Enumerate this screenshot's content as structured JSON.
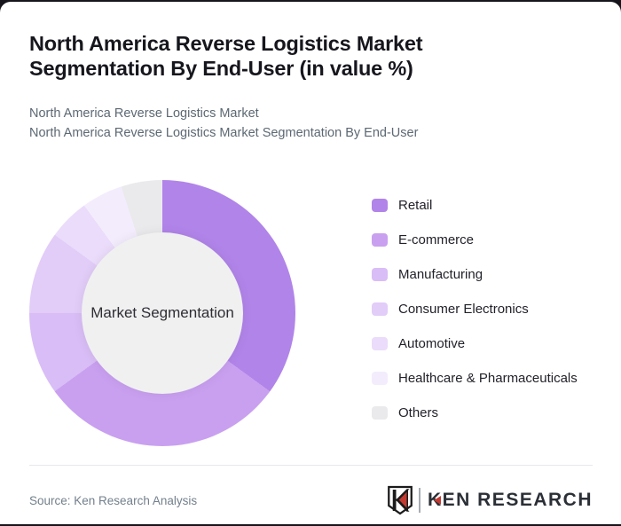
{
  "header": {
    "title": "North America Reverse Logistics Market Segmentation By End-User (in value %)",
    "subtitles": [
      "North America Reverse Logistics Market",
      "North America Reverse Logistics Market Segmentation By End-User"
    ]
  },
  "chart_data": {
    "type": "pie",
    "variant": "donut",
    "center_label": "Market Segmentation",
    "categories": [
      "Retail",
      "E-commerce",
      "Manufacturing",
      "Consumer Electronics",
      "Automotive",
      "Healthcare & Pharmaceuticals",
      "Others"
    ],
    "values": [
      35,
      30,
      10,
      10,
      5,
      5,
      5
    ],
    "unit": "percent of value",
    "colors": [
      "#b184e9",
      "#c9a0f0",
      "#d9bdf6",
      "#e2ccf8",
      "#eadcfa",
      "#f3ecfc",
      "#eaeaec"
    ],
    "start_angle_deg": 0,
    "direction": "clockwise",
    "legend_position": "right",
    "data_labels": false
  },
  "footer": {
    "source": "Source: Ken Research Analysis",
    "brand": "KEN RESEARCH"
  }
}
